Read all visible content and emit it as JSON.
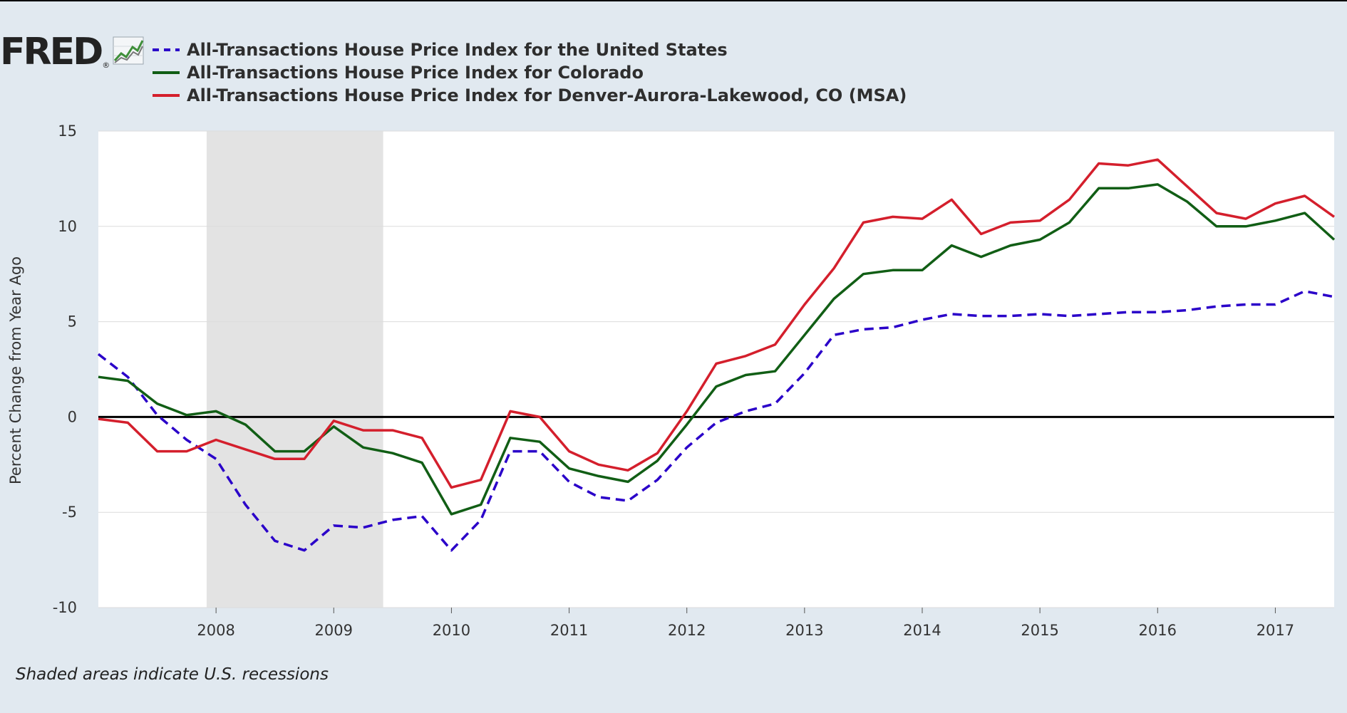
{
  "colors": {
    "us": "#2a00c9",
    "colorado": "#115e15",
    "denver": "#d41f2c",
    "recession": "#e3e3e3",
    "plot_bg": "#ffffff",
    "page_bg": "#e1e9f0"
  },
  "logo": {
    "text": "FRED",
    "registered": "®",
    "icon": "line-chart-icon"
  },
  "footnote": "Shaded areas indicate U.S. recessions",
  "chart_data": {
    "type": "line",
    "title": "",
    "xlabel": "",
    "ylabel": "Percent Change from Year Ago",
    "xlim": [
      2007.0,
      2017.5
    ],
    "ylim": [
      -10,
      15
    ],
    "yticks": [
      -10,
      -5,
      0,
      5,
      10,
      15
    ],
    "xticks": [
      "2008",
      "2009",
      "2010",
      "2011",
      "2012",
      "2013",
      "2014",
      "2015",
      "2016",
      "2017"
    ],
    "grid": true,
    "legend": "top-left",
    "zero_line": 0,
    "recessions": [
      [
        2007.92,
        2009.42
      ]
    ],
    "x": [
      2007.0,
      2007.25,
      2007.5,
      2007.75,
      2008.0,
      2008.25,
      2008.5,
      2008.75,
      2009.0,
      2009.25,
      2009.5,
      2009.75,
      2010.0,
      2010.25,
      2010.5,
      2010.75,
      2011.0,
      2011.25,
      2011.5,
      2011.75,
      2012.0,
      2012.25,
      2012.5,
      2012.75,
      2013.0,
      2013.25,
      2013.5,
      2013.75,
      2014.0,
      2014.25,
      2014.5,
      2014.75,
      2015.0,
      2015.25,
      2015.5,
      2015.75,
      2016.0,
      2016.25,
      2016.5,
      2016.75,
      2017.0,
      2017.25,
      2017.5
    ],
    "series": [
      {
        "key": "us",
        "name": "All-Transactions House Price Index for the United States",
        "style": "dashed",
        "values": [
          3.3,
          2.1,
          0.1,
          -1.2,
          -2.2,
          -4.6,
          -6.5,
          -7.0,
          -5.7,
          -5.8,
          -5.4,
          -5.2,
          -7.0,
          -5.4,
          -1.8,
          -1.8,
          -3.4,
          -4.2,
          -4.4,
          -3.3,
          -1.6,
          -0.3,
          0.3,
          0.7,
          2.3,
          4.3,
          4.6,
          4.7,
          5.1,
          5.4,
          5.3,
          5.3,
          5.4,
          5.3,
          5.4,
          5.5,
          5.5,
          5.6,
          5.8,
          5.9,
          5.9,
          6.6,
          6.3
        ]
      },
      {
        "key": "colorado",
        "name": "All-Transactions House Price Index for Colorado",
        "style": "solid",
        "values": [
          2.1,
          1.9,
          0.7,
          0.1,
          0.3,
          -0.4,
          -1.8,
          -1.8,
          -0.5,
          -1.6,
          -1.9,
          -2.4,
          -5.1,
          -4.6,
          -1.1,
          -1.3,
          -2.7,
          -3.1,
          -3.4,
          -2.3,
          -0.4,
          1.6,
          2.2,
          2.4,
          4.3,
          6.2,
          7.5,
          7.7,
          7.7,
          9.0,
          8.4,
          9.0,
          9.3,
          10.2,
          12.0,
          12.0,
          12.2,
          11.3,
          10.0,
          10.0,
          10.3,
          10.7,
          9.3
        ]
      },
      {
        "key": "denver",
        "name": "All-Transactions House Price Index for Denver-Aurora-Lakewood, CO (MSA)",
        "style": "solid",
        "values": [
          -0.1,
          -0.3,
          -1.8,
          -1.8,
          -1.2,
          -1.7,
          -2.2,
          -2.2,
          -0.2,
          -0.7,
          -0.7,
          -1.1,
          -3.7,
          -3.3,
          0.3,
          0.0,
          -1.8,
          -2.5,
          -2.8,
          -1.9,
          0.3,
          2.8,
          3.2,
          3.8,
          5.9,
          7.8,
          10.2,
          10.5,
          10.4,
          11.4,
          9.6,
          10.2,
          10.3,
          11.4,
          13.3,
          13.2,
          13.5,
          12.1,
          10.7,
          10.4,
          11.2,
          11.6,
          10.5
        ]
      }
    ]
  }
}
